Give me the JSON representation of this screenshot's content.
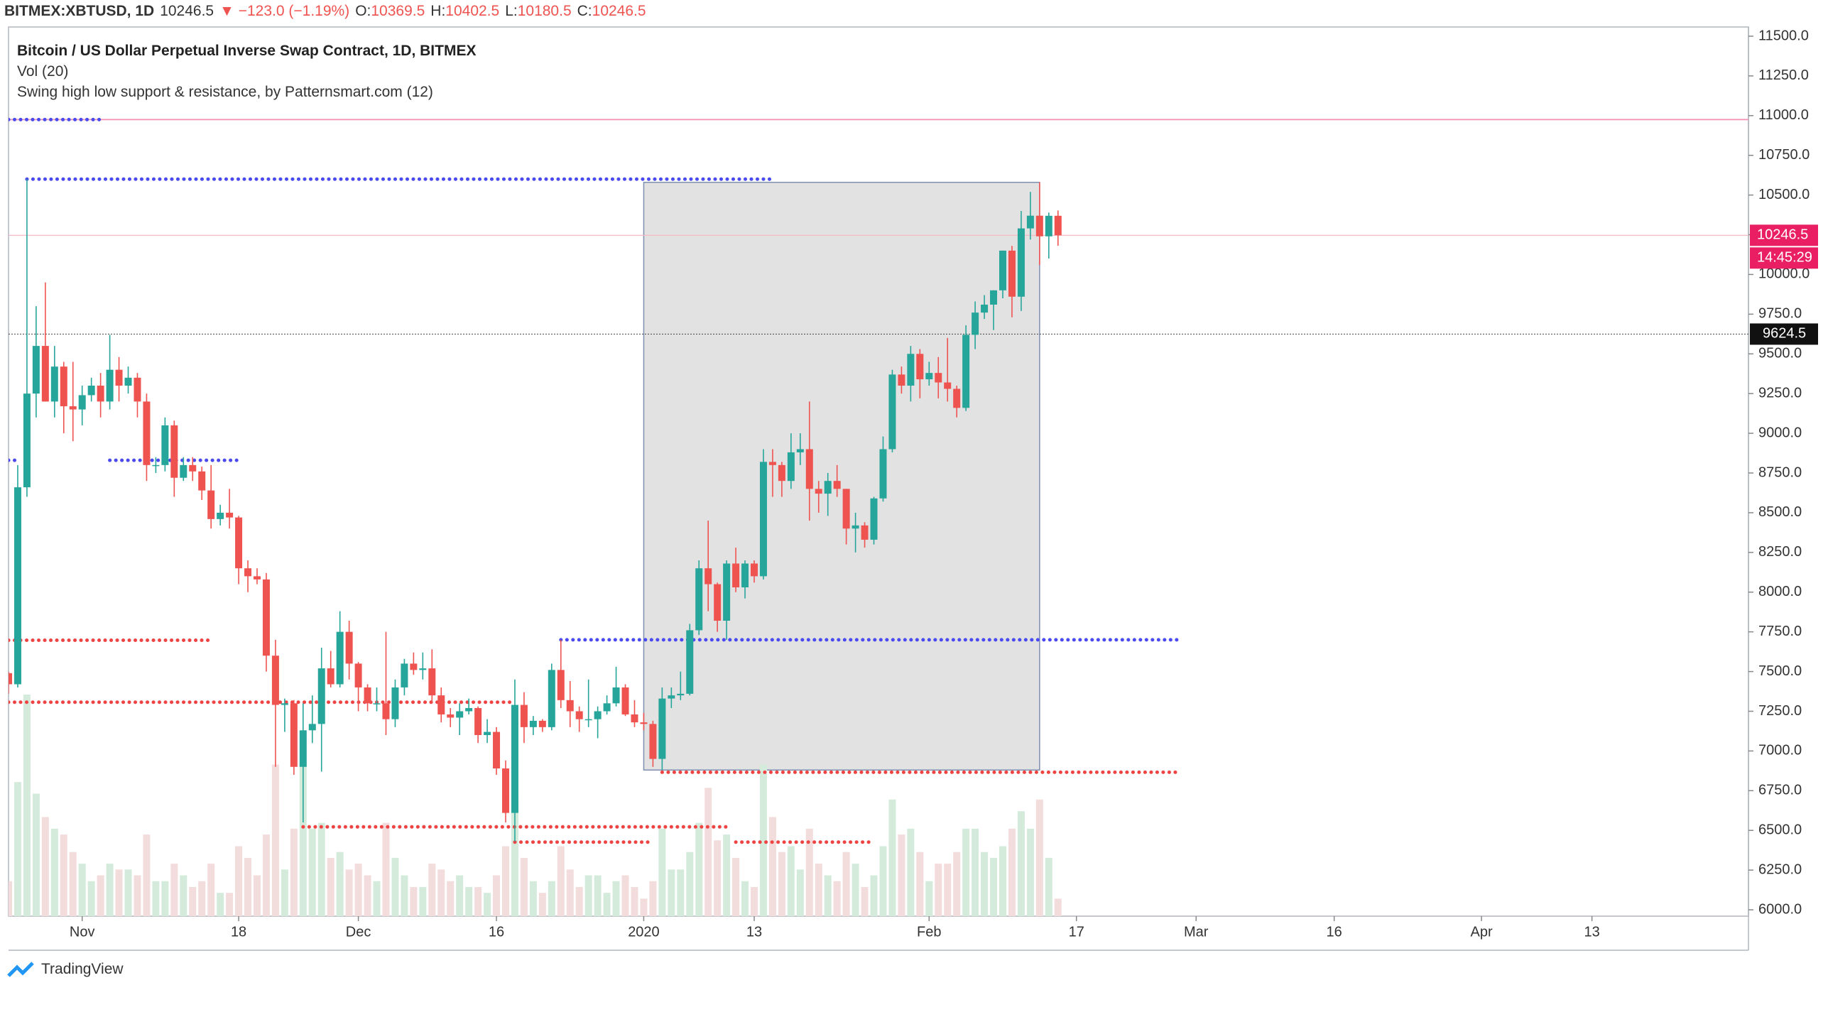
{
  "chart_data": {
    "type": "candlestick",
    "header": {
      "symbol": "BITMEX:XBTUSD, 1D",
      "change": "▼ −123.0 (−1.19%)",
      "ohlc_labels": [
        "O:",
        "H:",
        "L:",
        "C:"
      ]
    },
    "legend": [
      "Bitcoin / US Dollar Perpetual Inverse Swap Contract, 1D, BITMEX",
      "Vol (20)",
      "Swing high low support & resistance, by Patternsmart.com (12)"
    ],
    "brand": "TradingView",
    "x": [
      "2019-10-24",
      "2019-10-25",
      "2019-10-26",
      "2019-10-27",
      "2019-10-28",
      "2019-10-29",
      "2019-10-30",
      "2019-10-31",
      "2019-11-01",
      "2019-11-02",
      "2019-11-03",
      "2019-11-04",
      "2019-11-05",
      "2019-11-06",
      "2019-11-07",
      "2019-11-08",
      "2019-11-09",
      "2019-11-10",
      "2019-11-11",
      "2019-11-12",
      "2019-11-13",
      "2019-11-14",
      "2019-11-15",
      "2019-11-16",
      "2019-11-17",
      "2019-11-18",
      "2019-11-19",
      "2019-11-20",
      "2019-11-21",
      "2019-11-22",
      "2019-11-23",
      "2019-11-24",
      "2019-11-25",
      "2019-11-26",
      "2019-11-27",
      "2019-11-28",
      "2019-11-29",
      "2019-11-30",
      "2019-12-01",
      "2019-12-02",
      "2019-12-03",
      "2019-12-04",
      "2019-12-05",
      "2019-12-06",
      "2019-12-07",
      "2019-12-08",
      "2019-12-09",
      "2019-12-10",
      "2019-12-11",
      "2019-12-12",
      "2019-12-13",
      "2019-12-14",
      "2019-12-15",
      "2019-12-16",
      "2019-12-17",
      "2019-12-18",
      "2019-12-19",
      "2019-12-20",
      "2019-12-21",
      "2019-12-22",
      "2019-12-23",
      "2019-12-24",
      "2019-12-25",
      "2019-12-26",
      "2019-12-27",
      "2019-12-28",
      "2019-12-29",
      "2019-12-30",
      "2019-12-31",
      "2020-01-01",
      "2020-01-02",
      "2020-01-03",
      "2020-01-04",
      "2020-01-05",
      "2020-01-06",
      "2020-01-07",
      "2020-01-08",
      "2020-01-09",
      "2020-01-10",
      "2020-01-11",
      "2020-01-12",
      "2020-01-13",
      "2020-01-14",
      "2020-01-15",
      "2020-01-16",
      "2020-01-17",
      "2020-01-18",
      "2020-01-19",
      "2020-01-20",
      "2020-01-21",
      "2020-01-22",
      "2020-01-23",
      "2020-01-24",
      "2020-01-25",
      "2020-01-26",
      "2020-01-27",
      "2020-01-28",
      "2020-01-29",
      "2020-01-30",
      "2020-01-31",
      "2020-02-01",
      "2020-02-02",
      "2020-02-03",
      "2020-02-04",
      "2020-02-05",
      "2020-02-06",
      "2020-02-07",
      "2020-02-08",
      "2020-02-09",
      "2020-02-10",
      "2020-02-11",
      "2020-02-12",
      "2020-02-13",
      "2020-02-14",
      "2020-02-15"
    ],
    "open": [
      7490,
      7420,
      8660,
      9250,
      9550,
      9200,
      9420,
      9170,
      9150,
      9240,
      9300,
      9200,
      9400,
      9300,
      9350,
      9200,
      8800,
      8800,
      9050,
      8720,
      8800,
      8760,
      8640,
      8460,
      8500,
      8470,
      8150,
      8100,
      8080,
      7600,
      7290,
      7300,
      6900,
      7130,
      7170,
      7520,
      7420,
      7750,
      7550,
      7400,
      7300,
      7300,
      7200,
      7400,
      7550,
      7510,
      7520,
      7350,
      7230,
      7210,
      7250,
      7270,
      7100,
      7120,
      6890,
      6610,
      7290,
      7150,
      7190,
      7150,
      7510,
      7320,
      7250,
      7200,
      7200,
      7250,
      7300,
      7400,
      7230,
      7180,
      7170,
      6950,
      7330,
      7350,
      7360,
      7760,
      8150,
      8050,
      7820,
      8180,
      8030,
      8180,
      8100,
      8820,
      8800,
      8700,
      8880,
      8900,
      8650,
      8620,
      8700,
      8650,
      8400,
      8420,
      8330,
      8590,
      8900,
      9370,
      9300,
      9500,
      9340,
      9380,
      9320,
      9280,
      9160,
      9620,
      9760,
      9810,
      9900,
      10150,
      9860,
      10290,
      10370,
      10240,
      10369.5
    ],
    "high": [
      7500,
      8800,
      10600,
      9800,
      9950,
      9550,
      9450,
      9450,
      9300,
      9350,
      9380,
      9620,
      9480,
      9420,
      9380,
      9250,
      8850,
      9100,
      9080,
      8850,
      8850,
      8790,
      8800,
      8550,
      8650,
      8480,
      8200,
      8150,
      8120,
      7700,
      7330,
      7320,
      7300,
      7350,
      7650,
      7630,
      7880,
      7820,
      7560,
      7420,
      7400,
      7750,
      7450,
      7580,
      7620,
      7620,
      7640,
      7400,
      7270,
      7300,
      7330,
      7280,
      7200,
      7150,
      6940,
      7450,
      7370,
      7220,
      7200,
      7550,
      7700,
      7440,
      7280,
      7450,
      7280,
      7350,
      7530,
      7420,
      7320,
      7240,
      7190,
      7400,
      7400,
      7500,
      7800,
      8200,
      8450,
      8060,
      8200,
      8280,
      8200,
      8200,
      8900,
      8900,
      8820,
      9000,
      9000,
      9200,
      8700,
      8750,
      8800,
      8650,
      8500,
      8440,
      8600,
      8980,
      9400,
      9420,
      9550,
      9530,
      9450,
      9480,
      9600,
      9300,
      9680,
      9830,
      9870,
      9900,
      10150,
      10180,
      10400,
      10520,
      10580,
      10390,
      10402.5
    ],
    "low": [
      7360,
      7400,
      8600,
      9100,
      9200,
      9100,
      9000,
      8950,
      9050,
      9200,
      9100,
      9150,
      9200,
      9250,
      9100,
      8700,
      8750,
      8760,
      8600,
      8700,
      8700,
      8580,
      8400,
      8420,
      8400,
      8050,
      8000,
      8050,
      7500,
      6900,
      7120,
      6850,
      6550,
      7050,
      6870,
      7400,
      7400,
      7450,
      7250,
      7250,
      7250,
      7100,
      7150,
      7350,
      7480,
      7450,
      7300,
      7180,
      7150,
      7100,
      7230,
      7050,
      7050,
      6850,
      6550,
      6430,
      7050,
      7100,
      7120,
      7130,
      7270,
      7150,
      7120,
      7150,
      7080,
      7230,
      7280,
      7220,
      7150,
      7130,
      6900,
      6880,
      7270,
      7320,
      7350,
      7730,
      7880,
      7750,
      7700,
      8000,
      7960,
      8060,
      8080,
      8600,
      8600,
      8650,
      8800,
      8450,
      8500,
      8480,
      8600,
      8300,
      8250,
      8280,
      8300,
      8570,
      8880,
      9250,
      9200,
      9220,
      9300,
      9220,
      9200,
      9100,
      9140,
      9530,
      9720,
      9650,
      9850,
      9730,
      9770,
      10220,
      10060,
      10100,
      10180.5
    ],
    "close": [
      7420,
      8660,
      9250,
      9550,
      9200,
      9420,
      9170,
      9150,
      9240,
      9300,
      9200,
      9400,
      9300,
      9350,
      9200,
      8800,
      8800,
      9050,
      8720,
      8800,
      8760,
      8640,
      8460,
      8500,
      8470,
      8150,
      8100,
      8080,
      7600,
      7290,
      7300,
      6900,
      7130,
      7170,
      7520,
      7420,
      7750,
      7550,
      7400,
      7300,
      7300,
      7200,
      7400,
      7550,
      7510,
      7520,
      7350,
      7230,
      7210,
      7250,
      7270,
      7100,
      7120,
      6890,
      6610,
      7290,
      7150,
      7190,
      7150,
      7510,
      7320,
      7250,
      7200,
      7200,
      7250,
      7300,
      7400,
      7230,
      7180,
      7170,
      6950,
      7330,
      7350,
      7360,
      7760,
      8150,
      8050,
      7820,
      8180,
      8030,
      8180,
      8100,
      8820,
      8800,
      8700,
      8880,
      8900,
      8650,
      8620,
      8700,
      8650,
      8400,
      8420,
      8330,
      8590,
      8900,
      9370,
      9300,
      9500,
      9340,
      9380,
      9320,
      9280,
      9160,
      9620,
      9760,
      9810,
      9900,
      10150,
      9860,
      10290,
      10370,
      10240,
      10369.5,
      10246.5
    ],
    "volume": {
      "values": [
        30,
        115,
        190,
        105,
        85,
        75,
        70,
        55,
        45,
        30,
        35,
        45,
        40,
        40,
        35,
        70,
        30,
        30,
        45,
        35,
        25,
        30,
        45,
        20,
        20,
        60,
        50,
        35,
        70,
        130,
        40,
        75,
        130,
        75,
        80,
        50,
        55,
        40,
        45,
        35,
        30,
        80,
        50,
        35,
        25,
        25,
        45,
        40,
        30,
        35,
        25,
        25,
        20,
        35,
        60,
        100,
        50,
        30,
        20,
        30,
        60,
        40,
        25,
        35,
        35,
        20,
        30,
        35,
        25,
        15,
        30,
        75,
        40,
        40,
        55,
        80,
        110,
        65,
        70,
        50,
        30,
        25,
        130,
        85,
        55,
        60,
        40,
        75,
        45,
        35,
        30,
        55,
        45,
        25,
        35,
        60,
        100,
        70,
        75,
        55,
        30,
        45,
        45,
        55,
        75,
        75,
        55,
        50,
        60,
        75,
        90,
        75,
        100,
        50,
        15
      ],
      "up_color": "#d4ebdc",
      "down_color": "#f3dcdc"
    },
    "up_color": "#26a69a",
    "down_color": "#ef5350",
    "xlim": [
      "2019-10-24",
      "2020-04-30"
    ],
    "xticks": [
      {
        "value": "2019-11-01",
        "label": "Nov"
      },
      {
        "value": "2019-11-18",
        "label": "18"
      },
      {
        "value": "2019-12-01",
        "label": "Dec"
      },
      {
        "value": "2019-12-16",
        "label": "16"
      },
      {
        "value": "2020-01-01",
        "label": "2020"
      },
      {
        "value": "2020-01-13",
        "label": "13"
      },
      {
        "value": "2020-02-01",
        "label": "Feb"
      },
      {
        "value": "2020-02-17",
        "label": "17"
      },
      {
        "value": "2020-03-01",
        "label": "Mar"
      },
      {
        "value": "2020-03-16",
        "label": "16"
      },
      {
        "value": "2020-04-01",
        "label": "Apr"
      },
      {
        "value": "2020-04-13",
        "label": "13"
      }
    ],
    "ylim": [
      5960,
      11558
    ],
    "yticks": [
      {
        "value": 6000,
        "label": "6000.0"
      },
      {
        "value": 6250,
        "label": "6250.0"
      },
      {
        "value": 6500,
        "label": "6500.0"
      },
      {
        "value": 6750,
        "label": "6750.0"
      },
      {
        "value": 7000,
        "label": "7000.0"
      },
      {
        "value": 7250,
        "label": "7250.0"
      },
      {
        "value": 7500,
        "label": "7500.0"
      },
      {
        "value": 7750,
        "label": "7750.0"
      },
      {
        "value": 8000,
        "label": "8000.0"
      },
      {
        "value": 8250,
        "label": "8250.0"
      },
      {
        "value": 8500,
        "label": "8500.0"
      },
      {
        "value": 8750,
        "label": "8750.0"
      },
      {
        "value": 9000,
        "label": "9000.0"
      },
      {
        "value": 9250,
        "label": "9250.0"
      },
      {
        "value": 9500,
        "label": "9500.0"
      },
      {
        "value": 9750,
        "label": "9750.0"
      },
      {
        "value": 10000,
        "label": "10000.0"
      },
      {
        "value": 10250,
        "label": "10250.0"
      },
      {
        "value": 10500,
        "label": "10500.0"
      },
      {
        "value": 10750,
        "label": "10750.0"
      },
      {
        "value": 11000,
        "label": "11000.0"
      },
      {
        "value": 11250,
        "label": "11250.0"
      },
      {
        "value": 11500,
        "label": "11500.0"
      }
    ],
    "levels": [
      {
        "value": 10975,
        "from": "2019-10-24",
        "to": "2020-04-30",
        "color": "#f48fb1",
        "style": "solid"
      },
      {
        "value": 10975,
        "from": "2019-10-24",
        "to": "2019-11-03",
        "color": "#4a4af0",
        "style": "dotted"
      },
      {
        "value": 10600,
        "from": "2019-10-26",
        "to": "2020-01-15",
        "color": "#4a4af0",
        "style": "dotted"
      },
      {
        "value": 8830,
        "from": "2019-10-24",
        "to": "2019-10-25",
        "color": "#4a4af0",
        "style": "dotted"
      },
      {
        "value": 8830,
        "from": "2019-11-04",
        "to": "2019-11-18",
        "color": "#4a4af0",
        "style": "dotted"
      },
      {
        "value": 7697,
        "from": "2019-10-24",
        "to": "2019-11-15",
        "color": "#ef4444",
        "style": "dotted"
      },
      {
        "value": 7700,
        "from": "2019-12-23",
        "to": "2020-02-28",
        "color": "#4a4af0",
        "style": "dotted"
      },
      {
        "value": 7307,
        "from": "2019-10-24",
        "to": "2019-12-18",
        "color": "#ef4444",
        "style": "dotted"
      },
      {
        "value": 6866,
        "from": "2020-01-03",
        "to": "2020-02-28",
        "color": "#ef4444",
        "style": "dotted"
      },
      {
        "value": 6522,
        "from": "2019-11-25",
        "to": "2020-01-10",
        "color": "#ef4444",
        "style": "dotted"
      },
      {
        "value": 6426,
        "from": "2019-12-18",
        "to": "2020-01-02",
        "color": "#ef4444",
        "style": "dotted"
      },
      {
        "value": 6426,
        "from": "2020-01-11",
        "to": "2020-01-26",
        "color": "#ef4444",
        "style": "dotted"
      }
    ],
    "range_box": {
      "from": "2020-01-01",
      "to": "2020-02-13",
      "low": 6880,
      "high": 10580
    },
    "crosshair_price": 9624.5,
    "countdown": "14:45:29"
  }
}
